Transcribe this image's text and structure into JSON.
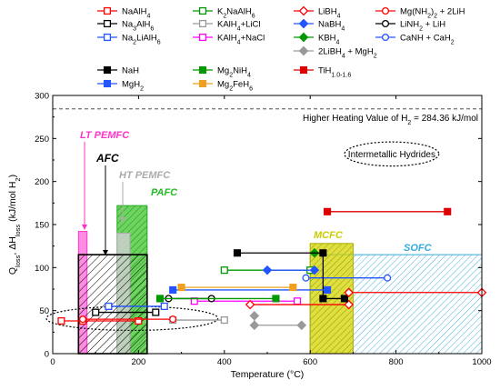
{
  "chart_data": {
    "type": "line",
    "title": "",
    "xlabel": "Temperature (°C)",
    "ylabel": "Q_loss, ΔH_loss (kJ/mol H2)",
    "xlim": [
      0,
      1000
    ],
    "ylim": [
      0,
      300
    ],
    "x_ticks": [
      0,
      200,
      400,
      600,
      800,
      1000
    ],
    "y_ticks": [
      0,
      50,
      100,
      150,
      200,
      250,
      300
    ],
    "grid": false,
    "legend_position": "top",
    "reference_line": {
      "y": 284.36,
      "label": "Higher Heating Value of H2 = 284.36 kJ/mol"
    },
    "ellipses": [
      {
        "label": "Intermetallic Hydrides",
        "cx": 790,
        "cy": 232,
        "rx": 110,
        "ry": 14
      },
      {
        "label": "",
        "cx": 185,
        "cy": 41,
        "rx": 200,
        "ry": 14
      }
    ],
    "regions": [
      {
        "name": "LT PEMFC",
        "x": [
          60,
          80
        ],
        "y": [
          0,
          142
        ],
        "color": "#ff33cc",
        "style": "filled-hatched"
      },
      {
        "name": "AFC",
        "x": [
          60,
          220
        ],
        "y": [
          0,
          115
        ],
        "color": "#000000",
        "style": "hatched"
      },
      {
        "name": "HT PEMFC",
        "x": [
          150,
          180
        ],
        "y": [
          0,
          140
        ],
        "color": "#bbbbbb",
        "style": "filled"
      },
      {
        "name": "PAFC",
        "x": [
          150,
          220
        ],
        "y": [
          0,
          172
        ],
        "color": "#22bb22",
        "style": "filled-hatched"
      },
      {
        "name": "MCFC",
        "x": [
          600,
          700
        ],
        "y": [
          0,
          128
        ],
        "color": "#cccc00",
        "style": "filled-hatched"
      },
      {
        "name": "SOFC",
        "x": [
          600,
          1000
        ],
        "y": [
          0,
          115
        ],
        "color": "#33aadd",
        "style": "hatched"
      }
    ],
    "series": [
      {
        "name": "NaAlH4",
        "color": "#ff0000",
        "marker": "square-open",
        "points": [
          [
            20,
            38
          ],
          [
            70,
            38
          ],
          [
            200,
            38
          ]
        ]
      },
      {
        "name": "Na3AlH6",
        "color": "#000000",
        "marker": "square-open",
        "points": [
          [
            100,
            48
          ],
          [
            240,
            48
          ]
        ]
      },
      {
        "name": "Na2LiAlH6",
        "color": "#2255ff",
        "marker": "square-open",
        "points": [
          [
            130,
            55
          ],
          [
            260,
            55
          ]
        ]
      },
      {
        "name": "K2NaAlH6",
        "color": "#009900",
        "marker": "square-open",
        "points": [
          [
            400,
            97
          ],
          [
            600,
            97
          ]
        ]
      },
      {
        "name": "KAlH4+LiCl",
        "color": "#999999",
        "marker": "square-open",
        "points": [
          [
            280,
            39
          ],
          [
            400,
            39
          ]
        ]
      },
      {
        "name": "KAlH4+NaCl",
        "color": "#ff00ff",
        "marker": "square-open",
        "points": [
          [
            330,
            61
          ],
          [
            570,
            61
          ]
        ]
      },
      {
        "name": "LiBH4",
        "color": "#ff0000",
        "marker": "diamond-open",
        "points": [
          [
            460,
            57
          ],
          [
            690,
            57
          ]
        ]
      },
      {
        "name": "NaBH4",
        "color": "#2255ff",
        "marker": "diamond",
        "points": [
          [
            500,
            97
          ],
          [
            610,
            97
          ]
        ]
      },
      {
        "name": "KBH4",
        "color": "#009900",
        "marker": "diamond",
        "points": [
          [
            610,
            117
          ]
        ]
      },
      {
        "name": "2LiBH4 + MgH2",
        "color": "#999999",
        "marker": "diamond",
        "points": [
          [
            470,
            44
          ],
          [
            470,
            33
          ],
          [
            580,
            33
          ]
        ]
      },
      {
        "name": "Mg(NH2)2 + 2LiH",
        "color": "#ff0000",
        "marker": "circle-open",
        "points": [
          [
            70,
            40
          ],
          [
            280,
            40
          ]
        ]
      },
      {
        "name": "LiNH2 + LiH",
        "color": "#000000",
        "marker": "circle-open",
        "points": [
          [
            270,
            64
          ],
          [
            370,
            64
          ]
        ]
      },
      {
        "name": "CaNH + CaH2",
        "color": "#2255ff",
        "marker": "circle-open",
        "points": [
          [
            590,
            88
          ],
          [
            780,
            88
          ]
        ]
      },
      {
        "name": "NaH",
        "color": "#000000",
        "marker": "square",
        "points": [
          [
            430,
            117
          ],
          [
            630,
            117
          ],
          [
            630,
            64
          ],
          [
            680,
            64
          ]
        ]
      },
      {
        "name": "MgH2",
        "color": "#2255ff",
        "marker": "square",
        "points": [
          [
            280,
            74
          ],
          [
            640,
            74
          ]
        ]
      },
      {
        "name": "Mg2NiH4",
        "color": "#009900",
        "marker": "square",
        "points": [
          [
            250,
            64
          ],
          [
            520,
            64
          ]
        ]
      },
      {
        "name": "Mg2FeH6",
        "color": "#f0a020",
        "marker": "square",
        "points": [
          [
            300,
            77
          ],
          [
            560,
            77
          ]
        ]
      },
      {
        "name": "TiH1.0-1.6",
        "color": "#dd0000",
        "marker": "square",
        "points": [
          [
            640,
            165
          ],
          [
            920,
            165
          ]
        ]
      },
      {
        "name": "LiBH4 (high)",
        "color": "#ff0000",
        "marker": "diamond-open",
        "points": [
          [
            690,
            71
          ],
          [
            1000,
            71
          ]
        ]
      }
    ],
    "legend": [
      {
        "label": "NaAlH4",
        "color": "#ff0000",
        "marker": "square-open"
      },
      {
        "label": "K2NaAlH6",
        "color": "#009900",
        "marker": "square-open"
      },
      {
        "label": "LiBH4",
        "color": "#ff0000",
        "marker": "diamond-open"
      },
      {
        "label": "Mg(NH2)2 + 2LiH",
        "color": "#ff0000",
        "marker": "circle-open"
      },
      {
        "label": "Na3AlH6",
        "color": "#000000",
        "marker": "square-open"
      },
      {
        "label": "KAlH4+LiCl",
        "color": "#999999",
        "marker": "square-open"
      },
      {
        "label": "NaBH4",
        "color": "#2255ff",
        "marker": "diamond"
      },
      {
        "label": "LiNH2 + LiH",
        "color": "#000000",
        "marker": "circle-open"
      },
      {
        "label": "Na2LiAlH6",
        "color": "#2255ff",
        "marker": "square-open"
      },
      {
        "label": "KAlH4+NaCl",
        "color": "#ff00ff",
        "marker": "square-open"
      },
      {
        "label": "KBH4",
        "color": "#009900",
        "marker": "diamond"
      },
      {
        "label": "CaNH + CaH2",
        "color": "#2255ff",
        "marker": "circle-open"
      },
      {
        "label": "",
        "color": "",
        "marker": ""
      },
      {
        "label": "",
        "color": "",
        "marker": ""
      },
      {
        "label": "2LiBH4 + MgH2",
        "color": "#999999",
        "marker": "diamond"
      },
      {
        "label": "",
        "color": "",
        "marker": ""
      },
      {
        "label": "NaH",
        "color": "#000000",
        "marker": "square"
      },
      {
        "label": "Mg2NiH4",
        "color": "#009900",
        "marker": "square"
      },
      {
        "label": "TiH1.0-1.6",
        "color": "#dd0000",
        "marker": "square"
      },
      {
        "label": "",
        "color": "",
        "marker": ""
      },
      {
        "label": "MgH2",
        "color": "#2255ff",
        "marker": "square"
      },
      {
        "label": "Mg2FeH6",
        "color": "#f0a020",
        "marker": "square"
      }
    ]
  }
}
